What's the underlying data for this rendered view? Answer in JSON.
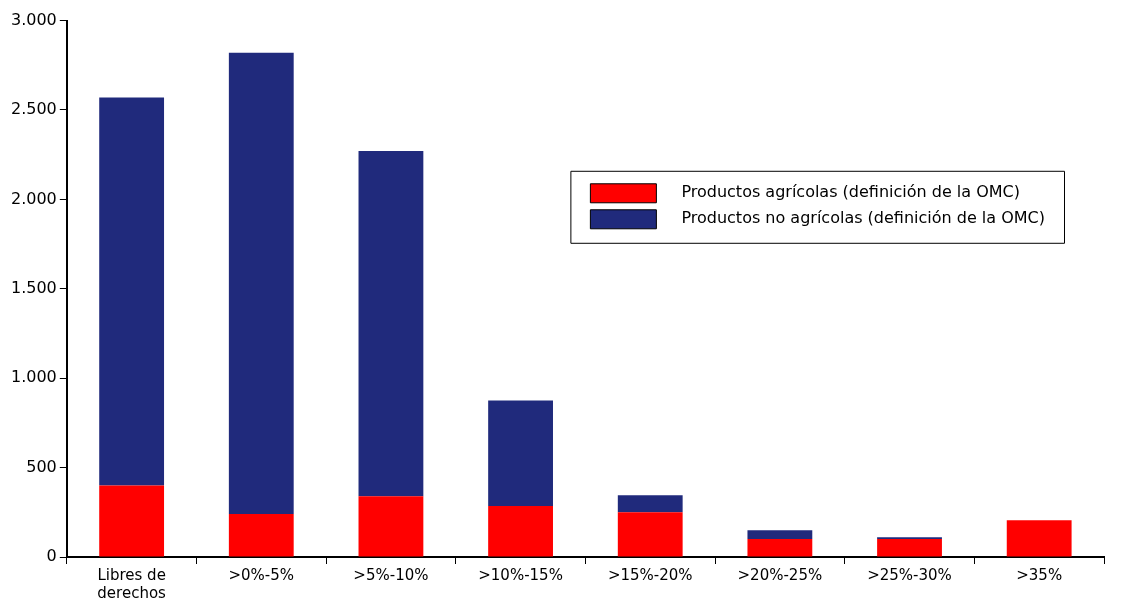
{
  "chart_data": {
    "type": "bar",
    "stacked": true,
    "categories": [
      "Libres de derechos",
      ">0%-5%",
      ">5%-10%",
      ">10%-15%",
      ">15%-20%",
      ">20%-25%",
      ">25%-30%",
      ">35%"
    ],
    "series": [
      {
        "name": "Productos agrícolas (definición de la OMC)",
        "color": "#ff0000",
        "values": [
          400,
          240,
          340,
          285,
          250,
          100,
          100,
          205
        ]
      },
      {
        "name": "Productos no agrícolas (definición de la OMC)",
        "color": "#202a7c",
        "values": [
          2170,
          2580,
          1930,
          590,
          95,
          50,
          10,
          0
        ]
      }
    ],
    "ylim": [
      0,
      3000
    ],
    "yticks": [
      {
        "value": 0,
        "label": "0"
      },
      {
        "value": 500,
        "label": "500"
      },
      {
        "value": 1000,
        "label": "1.000"
      },
      {
        "value": 1500,
        "label": "1.500"
      },
      {
        "value": 2000,
        "label": "2.000"
      },
      {
        "value": 2500,
        "label": "2.500"
      },
      {
        "value": 3000,
        "label": "3.000"
      }
    ],
    "grid": false,
    "legend": "right"
  }
}
